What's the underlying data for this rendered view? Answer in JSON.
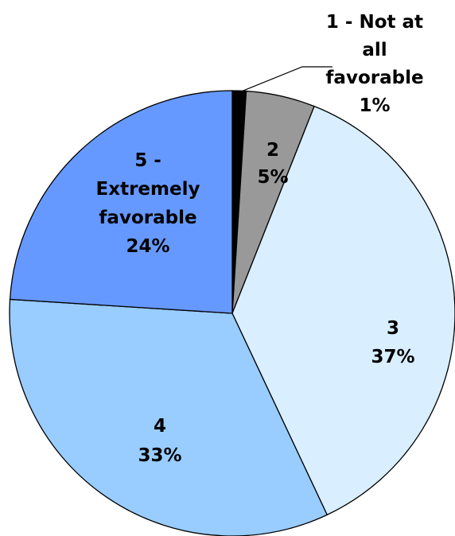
{
  "chart_data": {
    "type": "pie",
    "slices": [
      {
        "label_lines": [
          "1 - Not at",
          "all",
          "favorable"
        ],
        "percent_label": "1%",
        "value": 1,
        "color": "#000000"
      },
      {
        "label_lines": [
          "2"
        ],
        "percent_label": "5%",
        "value": 5,
        "color": "#999999"
      },
      {
        "label_lines": [
          "3"
        ],
        "percent_label": "37%",
        "value": 37,
        "color": "#d9eefe"
      },
      {
        "label_lines": [
          "4"
        ],
        "percent_label": "33%",
        "value": 33,
        "color": "#99ccff"
      },
      {
        "label_lines": [
          "5 -",
          "Extremely",
          "favorable"
        ],
        "percent_label": "24%",
        "value": 24,
        "color": "#6699ff"
      }
    ]
  }
}
